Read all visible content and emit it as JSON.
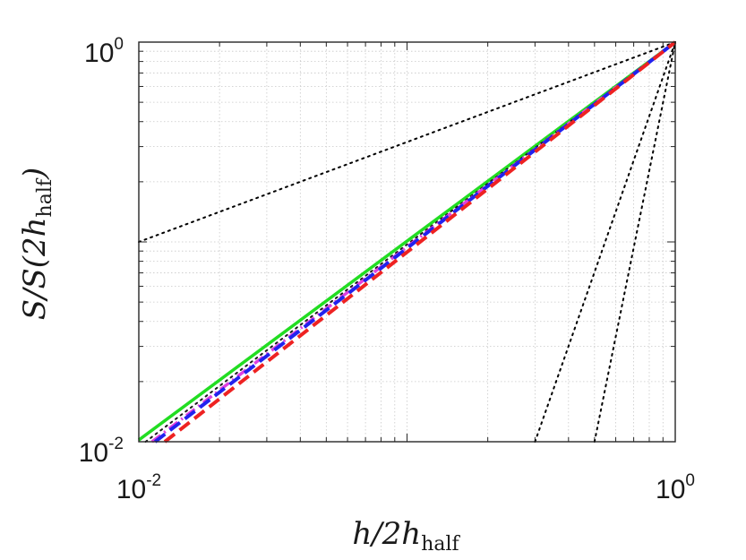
{
  "chart_data": {
    "type": "line",
    "xscale": "log",
    "yscale": "log",
    "xlim": [
      0.01,
      1
    ],
    "ylim": [
      0.01,
      1
    ],
    "grid": true,
    "xlabel": {
      "main": "h/2h",
      "sub": "half"
    },
    "ylabel": {
      "main": "S/S(2h",
      "sub": "half",
      "tail": ")"
    },
    "x_ticks": [
      {
        "base": "10",
        "exp": "-2"
      },
      {
        "base": "10",
        "exp": "0"
      }
    ],
    "y_ticks": [
      {
        "base": "10",
        "exp": "-2"
      },
      {
        "base": "10",
        "exp": "0"
      }
    ],
    "series": [
      {
        "style": "dotted",
        "color": "#000000",
        "x": [
          0.01,
          1
        ],
        "y": [
          0.1,
          1
        ]
      },
      {
        "style": "dotted",
        "color": "#000000",
        "x": [
          0.3,
          1
        ],
        "y": [
          0.01,
          1
        ]
      },
      {
        "style": "dotted",
        "color": "#000000",
        "x": [
          0.5,
          1
        ],
        "y": [
          0.01,
          1
        ]
      },
      {
        "style": "solid",
        "color": "#22dd22",
        "x": [
          0.01,
          1
        ],
        "y": [
          0.0102,
          1
        ]
      },
      {
        "style": "dotted",
        "color": "#1a1a1a",
        "x": [
          0.0106,
          1
        ],
        "y": [
          0.01,
          1
        ]
      },
      {
        "style": "dashdot",
        "color": "#e040e0",
        "x": [
          0.0112,
          1
        ],
        "y": [
          0.01,
          1
        ]
      },
      {
        "style": "dashed",
        "color": "#2222ee",
        "x": [
          0.0115,
          1
        ],
        "y": [
          0.01,
          1
        ]
      },
      {
        "style": "dashed",
        "color": "#ee2222",
        "x": [
          0.0125,
          1
        ],
        "y": [
          0.01,
          1
        ]
      }
    ]
  }
}
